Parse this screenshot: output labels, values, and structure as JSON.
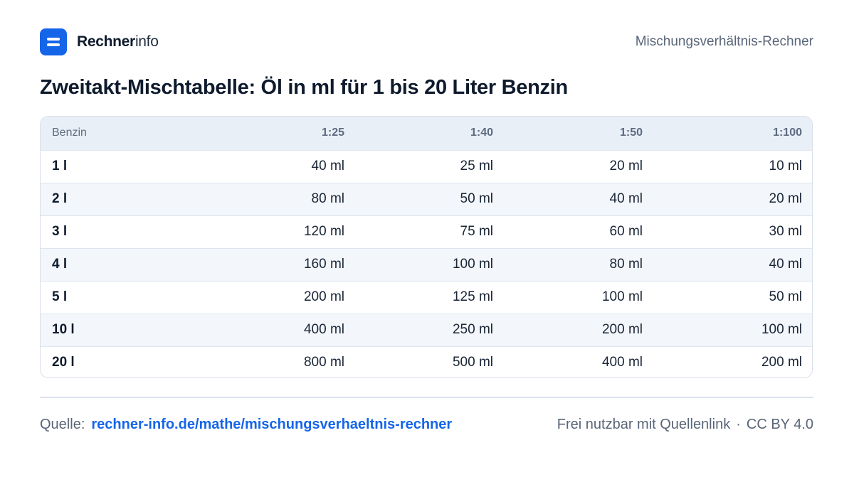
{
  "brand": {
    "name_strong": "Rechner",
    "name_light": "info",
    "logo_icon": "calculator-equals-icon",
    "accent_color": "#1565e9"
  },
  "header": {
    "right_text": "Mischungsverhältnis-Rechner"
  },
  "title": "Zweitakt-Mischtabelle: Öl in ml für 1 bis 20 Liter Benzin",
  "table": {
    "headers": [
      "Benzin",
      "1:25",
      "1:40",
      "1:50",
      "1:100"
    ],
    "rows": [
      [
        "1 l",
        "40 ml",
        "25 ml",
        "20 ml",
        "10 ml"
      ],
      [
        "2 l",
        "80 ml",
        "50 ml",
        "40 ml",
        "20 ml"
      ],
      [
        "3 l",
        "120 ml",
        "75 ml",
        "60 ml",
        "30 ml"
      ],
      [
        "4 l",
        "160 ml",
        "100 ml",
        "80 ml",
        "40 ml"
      ],
      [
        "5 l",
        "200 ml",
        "125 ml",
        "100 ml",
        "50 ml"
      ],
      [
        "10 l",
        "400 ml",
        "250 ml",
        "200 ml",
        "100 ml"
      ],
      [
        "20 l",
        "800 ml",
        "500 ml",
        "400 ml",
        "200 ml"
      ]
    ]
  },
  "footer": {
    "source_label": "Quelle:",
    "source_link": "rechner-info.de/mathe/mischungsverhaeltnis-rechner",
    "license_text": "Frei nutzbar mit Quellenlink",
    "separator": "·",
    "license_name": "CC BY 4.0"
  }
}
